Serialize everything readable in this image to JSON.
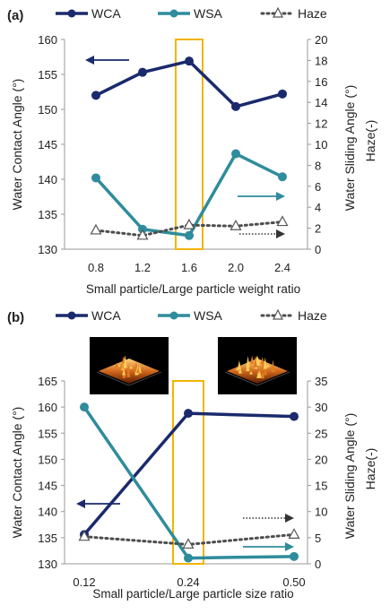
{
  "chart_data": [
    {
      "type": "line",
      "panel_label": "(a)",
      "xlabel": "Small particle/Large particle weight ratio",
      "ylabel_left": "Water Contact Angle (°)",
      "ylabel_right": [
        "Water Sliding Angle (°)",
        "Haze(-)"
      ],
      "categories": [
        "0.8",
        "1.2",
        "1.6",
        "2.0",
        "2.4"
      ],
      "ylim_left": [
        130,
        160
      ],
      "yticks_left": [
        "130",
        "135",
        "140",
        "145",
        "150",
        "155",
        "160"
      ],
      "ylim_right": [
        0,
        20
      ],
      "yticks_right": [
        "0",
        "2",
        "4",
        "6",
        "8",
        "10",
        "12",
        "14",
        "16",
        "18",
        "20"
      ],
      "highlight_category": "1.6",
      "legend_position": "top",
      "series": [
        {
          "name": "WCA",
          "axis": "left",
          "color": "#1a2a6c",
          "style": "solid-filled-circle",
          "values": [
            152.0,
            155.3,
            156.9,
            150.4,
            152.2
          ]
        },
        {
          "name": "WSA",
          "axis": "right",
          "color": "#2f8c9c",
          "style": "solid-filled-circle",
          "values": [
            6.8,
            1.9,
            1.3,
            9.1,
            6.9
          ]
        },
        {
          "name": "Haze",
          "axis": "right",
          "color": "#4d4d4d",
          "style": "dotted-open-triangle",
          "values": [
            1.8,
            1.3,
            2.3,
            2.2,
            2.6
          ]
        }
      ],
      "arrows": [
        {
          "series": "WCA",
          "direction": "left",
          "color": "#1a2a6c"
        },
        {
          "series": "WSA",
          "direction": "right",
          "color": "#2f8c9c"
        },
        {
          "series": "Haze",
          "direction": "right",
          "color": "#333333"
        }
      ]
    },
    {
      "type": "line",
      "panel_label": "(b)",
      "xlabel": "Small particle/Large particle size ratio",
      "ylabel_left": "Water Contact Angle (°)",
      "ylabel_right": [
        "Water Sliding Angle (°)",
        "Haze(-)"
      ],
      "categories": [
        "0.12",
        "0.24",
        "0.50"
      ],
      "ylim_left": [
        130,
        165
      ],
      "yticks_left": [
        "130",
        "135",
        "140",
        "145",
        "150",
        "155",
        "160",
        "165"
      ],
      "ylim_right": [
        0,
        35
      ],
      "yticks_right": [
        "0",
        "5",
        "10",
        "15",
        "20",
        "25",
        "30",
        "35"
      ],
      "highlight_category": "0.24",
      "legend_position": "top",
      "series": [
        {
          "name": "WCA",
          "axis": "left",
          "color": "#1a2a6c",
          "style": "solid-filled-circle",
          "values": [
            135.6,
            158.8,
            158.2
          ]
        },
        {
          "name": "WSA",
          "axis": "right",
          "color": "#2f8c9c",
          "style": "solid-filled-circle",
          "values": [
            30.0,
            1.1,
            1.4
          ]
        },
        {
          "name": "Haze",
          "axis": "right",
          "color": "#4d4d4d",
          "style": "dotted-open-triangle",
          "values": [
            5.2,
            3.7,
            5.6
          ]
        }
      ],
      "arrows": [
        {
          "series": "WCA",
          "direction": "left",
          "color": "#1a2a6c"
        },
        {
          "series": "Haze",
          "direction": "right",
          "color": "#333333"
        },
        {
          "series": "WSA",
          "direction": "right",
          "color": "#2f8c9c"
        }
      ],
      "afm_insets": [
        {
          "category": "0.12",
          "name": "afm-surface-image"
        },
        {
          "category": "0.50",
          "name": "afm-surface-image"
        }
      ]
    }
  ]
}
